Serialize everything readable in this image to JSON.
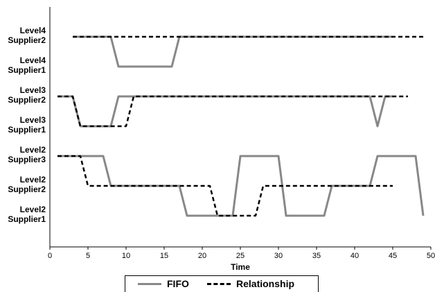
{
  "chart_data": {
    "type": "line",
    "xlabel": "Time",
    "xlim": [
      0,
      50
    ],
    "xticks": [
      0,
      5,
      10,
      15,
      20,
      25,
      30,
      35,
      40,
      45,
      50
    ],
    "categories": [
      [
        "Level4",
        "Supplier2"
      ],
      [
        "Level4",
        "Supplier1"
      ],
      [
        "Level3",
        "Supplier2"
      ],
      [
        "Level3",
        "Supplier1"
      ],
      [
        "Level2",
        "Supplier3"
      ],
      [
        "Level2",
        "Supplier2"
      ],
      [
        "Level2",
        "Supplier1"
      ]
    ],
    "legend": "bottom",
    "grid": false,
    "series": [
      {
        "name": "FIFO",
        "color": "#888888",
        "style": "solid",
        "segments": [
          [
            [
              3,
              0
            ],
            [
              8,
              0
            ],
            [
              9,
              1
            ],
            [
              16,
              1
            ],
            [
              17,
              0
            ],
            [
              45,
              0
            ]
          ],
          [
            [
              1,
              2
            ],
            [
              3,
              2
            ],
            [
              4,
              3
            ],
            [
              8,
              3
            ],
            [
              9,
              2
            ],
            [
              42,
              2
            ],
            [
              43,
              3
            ],
            [
              44,
              2
            ],
            [
              45,
              2
            ]
          ],
          [
            [
              1,
              4
            ],
            [
              7,
              4
            ],
            [
              8,
              5
            ],
            [
              17,
              5
            ],
            [
              18,
              6
            ],
            [
              24,
              6
            ],
            [
              25,
              4
            ],
            [
              30,
              4
            ],
            [
              31,
              6
            ],
            [
              36,
              6
            ],
            [
              37,
              5
            ],
            [
              42,
              5
            ],
            [
              43,
              4
            ],
            [
              48,
              4
            ],
            [
              49,
              6
            ]
          ]
        ]
      },
      {
        "name": "Relationship",
        "color": "#000000",
        "style": "dashed",
        "segments": [
          [
            [
              3,
              0
            ],
            [
              49,
              0
            ]
          ],
          [
            [
              1,
              2
            ],
            [
              3,
              2
            ],
            [
              4,
              3
            ],
            [
              10,
              3
            ],
            [
              11,
              2
            ],
            [
              47,
              2
            ]
          ],
          [
            [
              1,
              4
            ],
            [
              4,
              4
            ],
            [
              5,
              5
            ],
            [
              21,
              5
            ],
            [
              22,
              6
            ],
            [
              27,
              6
            ],
            [
              28,
              5
            ],
            [
              45,
              5
            ]
          ]
        ]
      }
    ]
  }
}
